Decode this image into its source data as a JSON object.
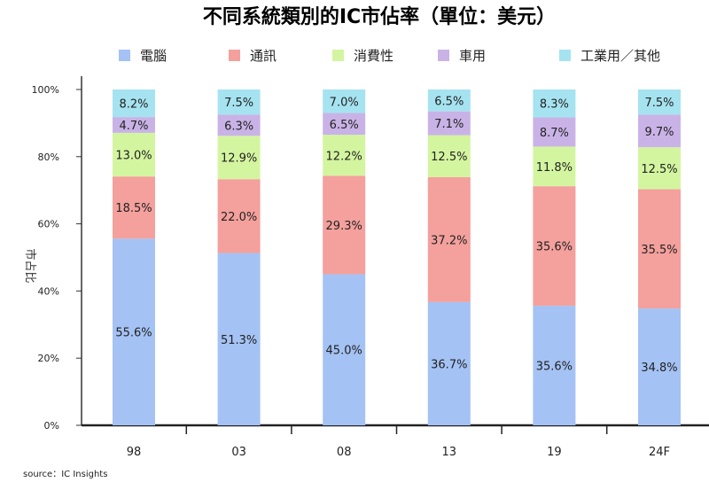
{
  "chart_data": {
    "type": "bar",
    "stacked": true,
    "title": "不同系統類別的IC市佔率（單位：美元）",
    "ylabel": "市占比",
    "source": "source：IC Insights",
    "categories": [
      "98",
      "03",
      "08",
      "13",
      "19",
      "24F"
    ],
    "y_ticks": [
      "0%",
      "20%",
      "40%",
      "60%",
      "80%",
      "100%"
    ],
    "ylim": [
      0,
      100
    ],
    "legend_position": "top",
    "series": [
      {
        "name": "電腦",
        "color": "#a4c2f4",
        "values": [
          55.6,
          51.3,
          45.0,
          36.7,
          35.6,
          34.8
        ],
        "labels": [
          "55.6%",
          "51.3%",
          "45.0%",
          "36.7%",
          "35.6%",
          "34.8%"
        ]
      },
      {
        "name": "通訊",
        "color": "#f4a09c",
        "values": [
          18.5,
          22.0,
          29.3,
          37.2,
          35.6,
          35.5
        ],
        "labels": [
          "18.5%",
          "22.0%",
          "29.3%",
          "37.2%",
          "35.6%",
          "35.5%"
        ]
      },
      {
        "name": "消費性",
        "color": "#d4f5a0",
        "values": [
          13.0,
          12.9,
          12.2,
          12.5,
          11.8,
          12.5
        ],
        "labels": [
          "13.0%",
          "12.9%",
          "12.2%",
          "12.5%",
          "11.8%",
          "12.5%"
        ]
      },
      {
        "name": "車用",
        "color": "#c9b3e6",
        "values": [
          4.7,
          6.3,
          6.5,
          7.1,
          8.7,
          9.7
        ],
        "labels": [
          "4.7%",
          "6.3%",
          "6.5%",
          "7.1%",
          "8.7%",
          "9.7%"
        ]
      },
      {
        "name": "工業用／其他",
        "color": "#a6e3f0",
        "values": [
          8.2,
          7.5,
          7.0,
          6.5,
          8.3,
          7.5
        ],
        "labels": [
          "8.2%",
          "7.5%",
          "7.0%",
          "6.5%",
          "8.3%",
          "7.5%"
        ]
      }
    ]
  }
}
